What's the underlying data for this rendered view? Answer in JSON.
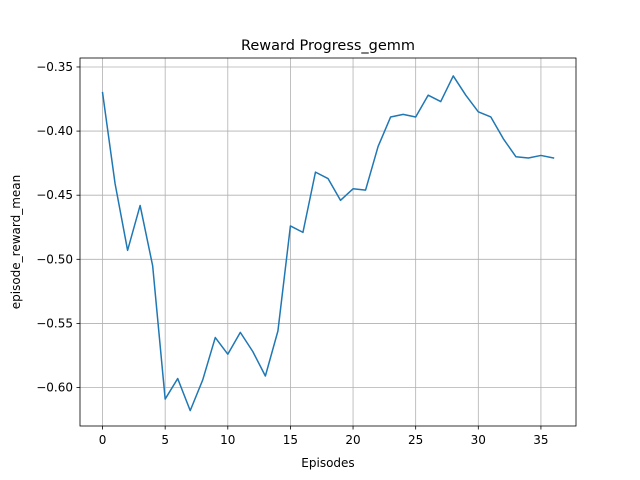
{
  "chart_data": {
    "type": "line",
    "title": "Reward Progress_gemm",
    "xlabel": "Episodes",
    "ylabel": "episode_reward_mean",
    "xlim": [
      -1.8,
      37.8
    ],
    "ylim": [
      -0.63,
      -0.343
    ],
    "x_ticks": [
      0,
      5,
      10,
      15,
      20,
      25,
      30,
      35
    ],
    "y_ticks": [
      -0.35,
      -0.4,
      -0.45,
      -0.5,
      -0.55,
      -0.6
    ],
    "x_tick_labels": [
      "0",
      "5",
      "10",
      "15",
      "20",
      "25",
      "30",
      "35"
    ],
    "y_tick_labels": [
      "−0.35",
      "−0.40",
      "−0.45",
      "−0.50",
      "−0.55",
      "−0.60"
    ],
    "grid": true,
    "line_color": "#1f77b4",
    "series": [
      {
        "x": [
          0,
          1,
          2,
          3,
          4,
          5,
          6,
          7,
          8,
          9,
          10,
          11,
          12,
          13,
          14,
          15,
          16,
          17,
          18,
          19,
          20,
          21,
          22,
          23,
          24,
          25,
          26,
          27,
          28,
          29,
          30,
          31,
          32,
          33,
          34,
          35,
          36
        ],
        "values": [
          -0.37,
          -0.441,
          -0.493,
          -0.458,
          -0.505,
          -0.609,
          -0.593,
          -0.618,
          -0.594,
          -0.561,
          -0.574,
          -0.557,
          -0.572,
          -0.591,
          -0.556,
          -0.474,
          -0.479,
          -0.432,
          -0.437,
          -0.454,
          -0.445,
          -0.446,
          -0.412,
          -0.389,
          -0.387,
          -0.389,
          -0.372,
          -0.377,
          -0.357,
          -0.372,
          -0.385,
          -0.389,
          -0.406,
          -0.42,
          -0.421,
          -0.419,
          -0.421
        ]
      }
    ]
  }
}
